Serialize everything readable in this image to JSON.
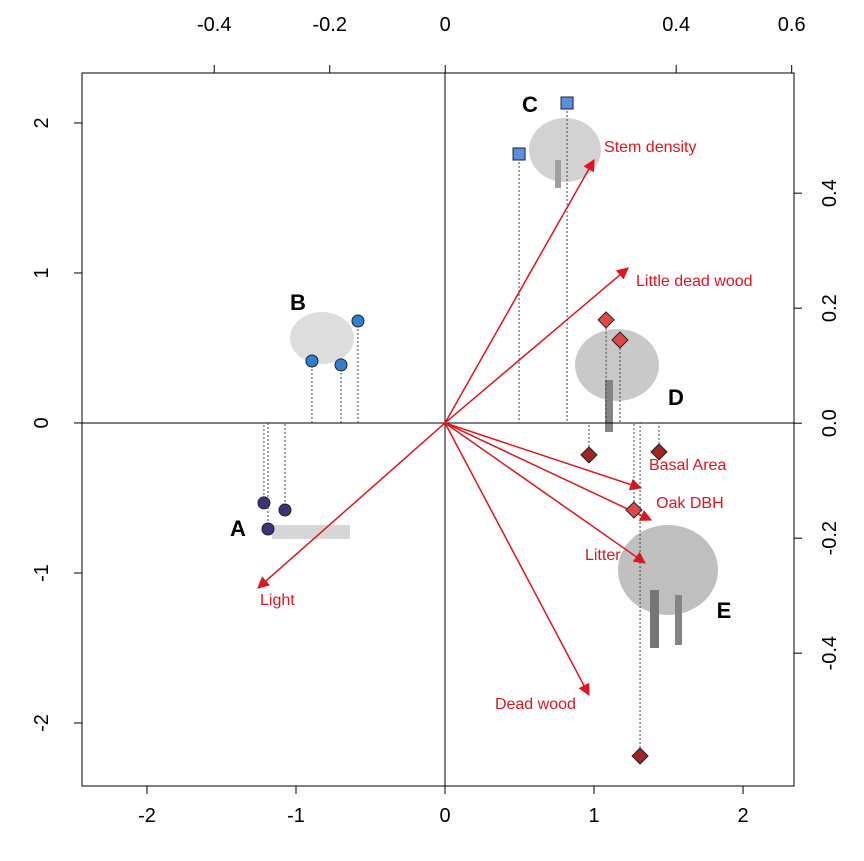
{
  "chart_data": {
    "type": "scatter",
    "xlim": [
      -2.436,
      2.342
    ],
    "xticks": [
      -2,
      -1,
      0,
      1,
      2
    ],
    "ylim": [
      -2.42,
      2.333
    ],
    "yticks": [
      -2,
      -1,
      0,
      1,
      2
    ],
    "x2lim": [
      -0.629,
      0.604
    ],
    "x2ticks": [
      -0.4,
      -0.2,
      0,
      0.4,
      0.6
    ],
    "y2lim": [
      -0.631,
      0.609
    ],
    "y2ticks": [
      -0.4,
      -0.2,
      {
        "value": 0,
        "label": "0.0"
      },
      0.2,
      0.4
    ],
    "zero_lines": true,
    "group_labels": [
      "A",
      "B",
      "C",
      "D",
      "E"
    ],
    "series": [
      {
        "marker": "circle",
        "color": "#3b3478",
        "x": [
          -1.215,
          -1.074,
          -1.188
        ],
        "values": [
          -0.533,
          -0.58,
          -0.707
        ]
      },
      {
        "marker": "circle",
        "color": "#2f7fd0",
        "x": [
          -0.584,
          -0.893,
          -0.698
        ],
        "values": [
          0.68,
          0.413,
          0.387
        ]
      },
      {
        "marker": "square",
        "color": "#5b8fe0",
        "x": [
          0.819,
          0.497
        ],
        "values": [
          2.133,
          1.793
        ]
      },
      {
        "marker": "diamond",
        "color": "#e04848",
        "x": [
          1.081,
          1.174,
          1.268
        ],
        "values": [
          0.687,
          0.553,
          -0.58
        ]
      },
      {
        "marker": "diamond",
        "color": "#a02424",
        "x": [
          0.966,
          1.436,
          1.309
        ],
        "values": [
          -0.213,
          -0.193,
          -2.22
        ]
      }
    ],
    "vector_color": "#e0141e",
    "vectors": [
      {
        "name": "Stem density",
        "x": 1.0,
        "y": 1.753
      },
      {
        "name": "Little dead wood",
        "x": 1.228,
        "y": 1.033
      },
      {
        "name": "Basal Area",
        "x": 1.315,
        "y": -0.433
      },
      {
        "name": "Oak DBH",
        "x": 1.383,
        "y": -0.647
      },
      {
        "name": "Litter",
        "x": 1.342,
        "y": -0.933
      },
      {
        "name": "Dead wood",
        "x": 0.966,
        "y": -1.813
      },
      {
        "name": "Light",
        "x": -1.255,
        "y": -1.1
      }
    ]
  }
}
